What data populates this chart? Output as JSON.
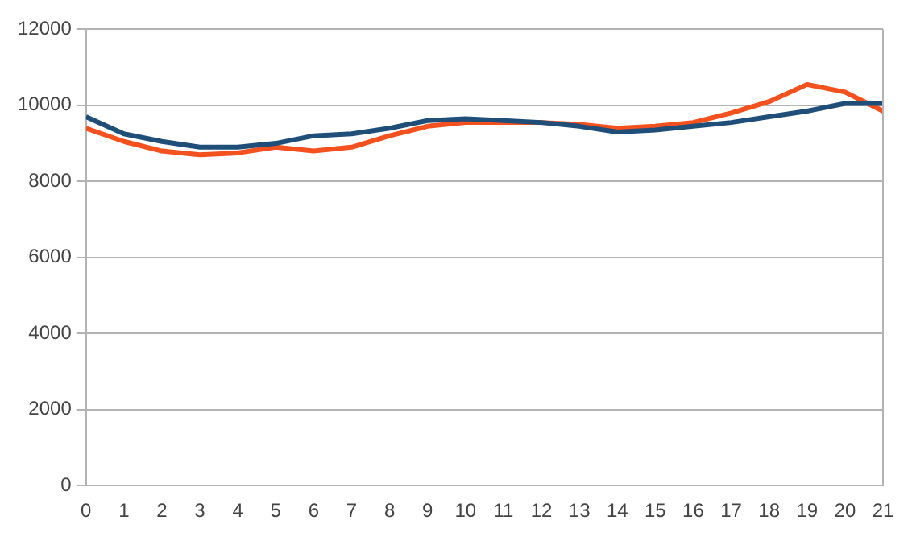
{
  "chart_data": {
    "type": "line",
    "x": [
      0,
      1,
      2,
      3,
      4,
      5,
      6,
      7,
      8,
      9,
      10,
      11,
      12,
      13,
      14,
      15,
      16,
      17,
      18,
      19,
      20,
      21
    ],
    "series": [
      {
        "color": "#1f4e79",
        "values": [
          9700,
          9250,
          9050,
          8900,
          8900,
          9000,
          9200,
          9250,
          9400,
          9600,
          9650,
          9600,
          9550,
          9450,
          9300,
          9350,
          9450,
          9550,
          9700,
          9850,
          10050,
          10050
        ]
      },
      {
        "color": "#f4511e",
        "values": [
          9400,
          9050,
          8800,
          8700,
          8750,
          8900,
          8800,
          8900,
          9200,
          9450,
          9550,
          9550,
          9550,
          9500,
          9400,
          9450,
          9550,
          9800,
          10100,
          10550,
          10350,
          9850
        ]
      }
    ],
    "xlim": [
      0,
      21
    ],
    "xticks": [
      0,
      1,
      2,
      3,
      4,
      5,
      6,
      7,
      8,
      9,
      10,
      11,
      12,
      13,
      14,
      15,
      16,
      17,
      18,
      19,
      20,
      21
    ],
    "ylim": [
      0,
      12000
    ],
    "yticks": [
      0,
      2000,
      4000,
      6000,
      8000,
      10000,
      12000
    ],
    "grid": "y",
    "legend": false,
    "marker": "none",
    "line_style": "solid"
  }
}
